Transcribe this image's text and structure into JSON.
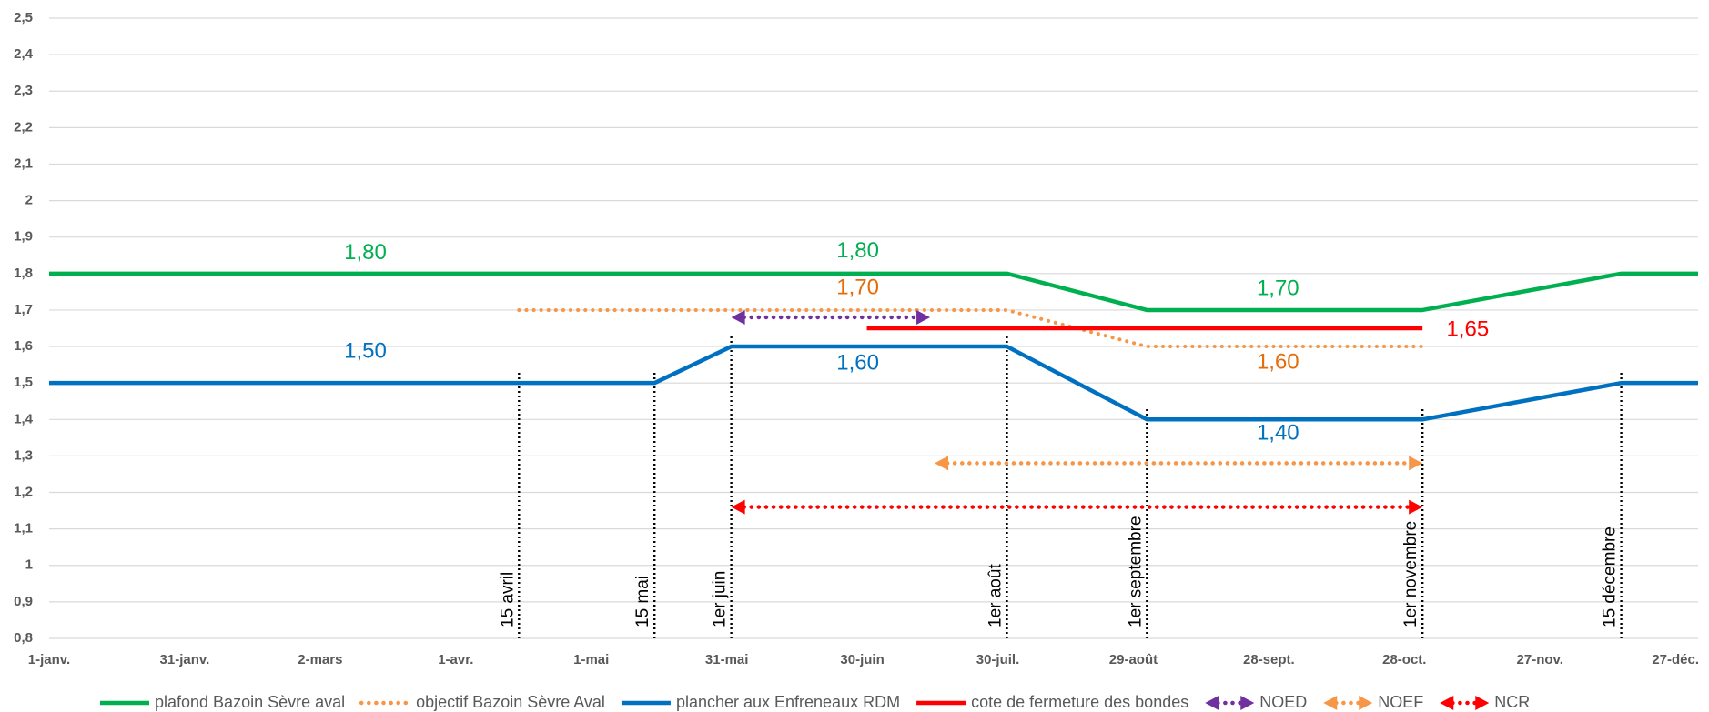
{
  "chart_data": {
    "type": "line",
    "xlim": [
      0,
      365
    ],
    "xticks": [
      {
        "value": 0,
        "label": "1-janv."
      },
      {
        "value": 30,
        "label": "31-janv."
      },
      {
        "value": 60,
        "label": "2-mars"
      },
      {
        "value": 90,
        "label": "1-avr."
      },
      {
        "value": 120,
        "label": "1-mai"
      },
      {
        "value": 150,
        "label": "31-mai"
      },
      {
        "value": 180,
        "label": "30-juin"
      },
      {
        "value": 210,
        "label": "30-juil."
      },
      {
        "value": 240,
        "label": "29-août"
      },
      {
        "value": 270,
        "label": "28-sept."
      },
      {
        "value": 300,
        "label": "28-oct."
      },
      {
        "value": 330,
        "label": "27-nov."
      },
      {
        "value": 360,
        "label": "27-déc."
      }
    ],
    "ylim": [
      0.8,
      2.5
    ],
    "yticks": [
      {
        "value": 0.8,
        "label": "0,8"
      },
      {
        "value": 0.9,
        "label": "0,9"
      },
      1,
      {
        "value": 1.1,
        "label": "1,1"
      },
      {
        "value": 1.2,
        "label": "1,2"
      },
      {
        "value": 1.3,
        "label": "1,3"
      },
      {
        "value": 1.4,
        "label": "1,4"
      },
      {
        "value": 1.5,
        "label": "1,5"
      },
      {
        "value": 1.6,
        "label": "1,6"
      },
      {
        "value": 1.7,
        "label": "1,7"
      },
      {
        "value": 1.8,
        "label": "1,8"
      },
      {
        "value": 1.9,
        "label": "1,9"
      },
      2,
      {
        "value": 2.1,
        "label": "2,1"
      },
      {
        "value": 2.2,
        "label": "2,2"
      },
      {
        "value": 2.3,
        "label": "2,3"
      },
      {
        "value": 2.4,
        "label": "2,4"
      },
      {
        "value": 2.5,
        "label": "2,5"
      }
    ],
    "grid": true,
    "legend": "bottom",
    "series": [
      {
        "name": "plafond Bazoin Sèvre aval",
        "color": "#00b050",
        "style": "solid",
        "x": [
          0,
          212,
          243,
          304,
          348,
          365
        ],
        "values": [
          1.8,
          1.8,
          1.7,
          1.7,
          1.8,
          1.8
        ]
      },
      {
        "name": "objectif Bazoin Sèvre Aval",
        "color": "#f79646",
        "style": "dotted",
        "x": [
          104,
          212,
          243,
          304
        ],
        "values": [
          1.7,
          1.7,
          1.6,
          1.6
        ]
      },
      {
        "name": "plancher aux Enfreneaux RDM",
        "color": "#0070c0",
        "style": "solid",
        "x": [
          0,
          134,
          151,
          212,
          243,
          304,
          348,
          365
        ],
        "values": [
          1.5,
          1.5,
          1.6,
          1.6,
          1.4,
          1.4,
          1.5,
          1.5
        ]
      },
      {
        "name": "cote de fermeture des bondes",
        "color": "#ff0000",
        "style": "solid",
        "x": [
          181,
          304
        ],
        "values": [
          1.65,
          1.65
        ]
      },
      {
        "name": "NOED",
        "color": "#7030a0",
        "style": "arrow",
        "x": [
          151,
          195
        ],
        "values": [
          1.68,
          1.68
        ]
      },
      {
        "name": "NOEF",
        "color": "#f79646",
        "style": "arrow",
        "x": [
          196,
          304
        ],
        "values": [
          1.28,
          1.28
        ]
      },
      {
        "name": "NCR",
        "color": "#ff0000",
        "style": "arrow",
        "x": [
          151,
          304
        ],
        "values": [
          1.16,
          1.16
        ]
      }
    ],
    "annotations": [
      {
        "x": 70,
        "value": 1.8,
        "label": "1,80",
        "color": "#00b050"
      },
      {
        "x": 179,
        "value": 1.8,
        "label": "1,80",
        "color": "#00b050"
      },
      {
        "x": 272,
        "value": 1.7,
        "label": "1,70",
        "color": "#00b050"
      },
      {
        "x": 179,
        "value": 1.7,
        "label": "1,70",
        "color": "#e46c0a"
      },
      {
        "x": 272,
        "value": 1.6,
        "label": "1,60",
        "color": "#e46c0a"
      },
      {
        "x": 70,
        "value": 1.5,
        "label": "1,50",
        "color": "#0070c0"
      },
      {
        "x": 179,
        "value": 1.6,
        "label": "1,60",
        "color": "#0070c0"
      },
      {
        "x": 272,
        "value": 1.4,
        "label": "1,40",
        "color": "#0070c0"
      },
      {
        "x": 314,
        "value": 1.65,
        "label": "1,65",
        "color": "#ff0000"
      }
    ],
    "date_markers": [
      {
        "x": 104,
        "label": "15 avril"
      },
      {
        "x": 134,
        "label": "15 mai"
      },
      {
        "x": 151,
        "label": "1er juin"
      },
      {
        "x": 212,
        "label": "1er août"
      },
      {
        "x": 243,
        "label": "1er septembre"
      },
      {
        "x": 304,
        "label": "1er novembre"
      },
      {
        "x": 348,
        "label": "15 décembre"
      }
    ]
  }
}
